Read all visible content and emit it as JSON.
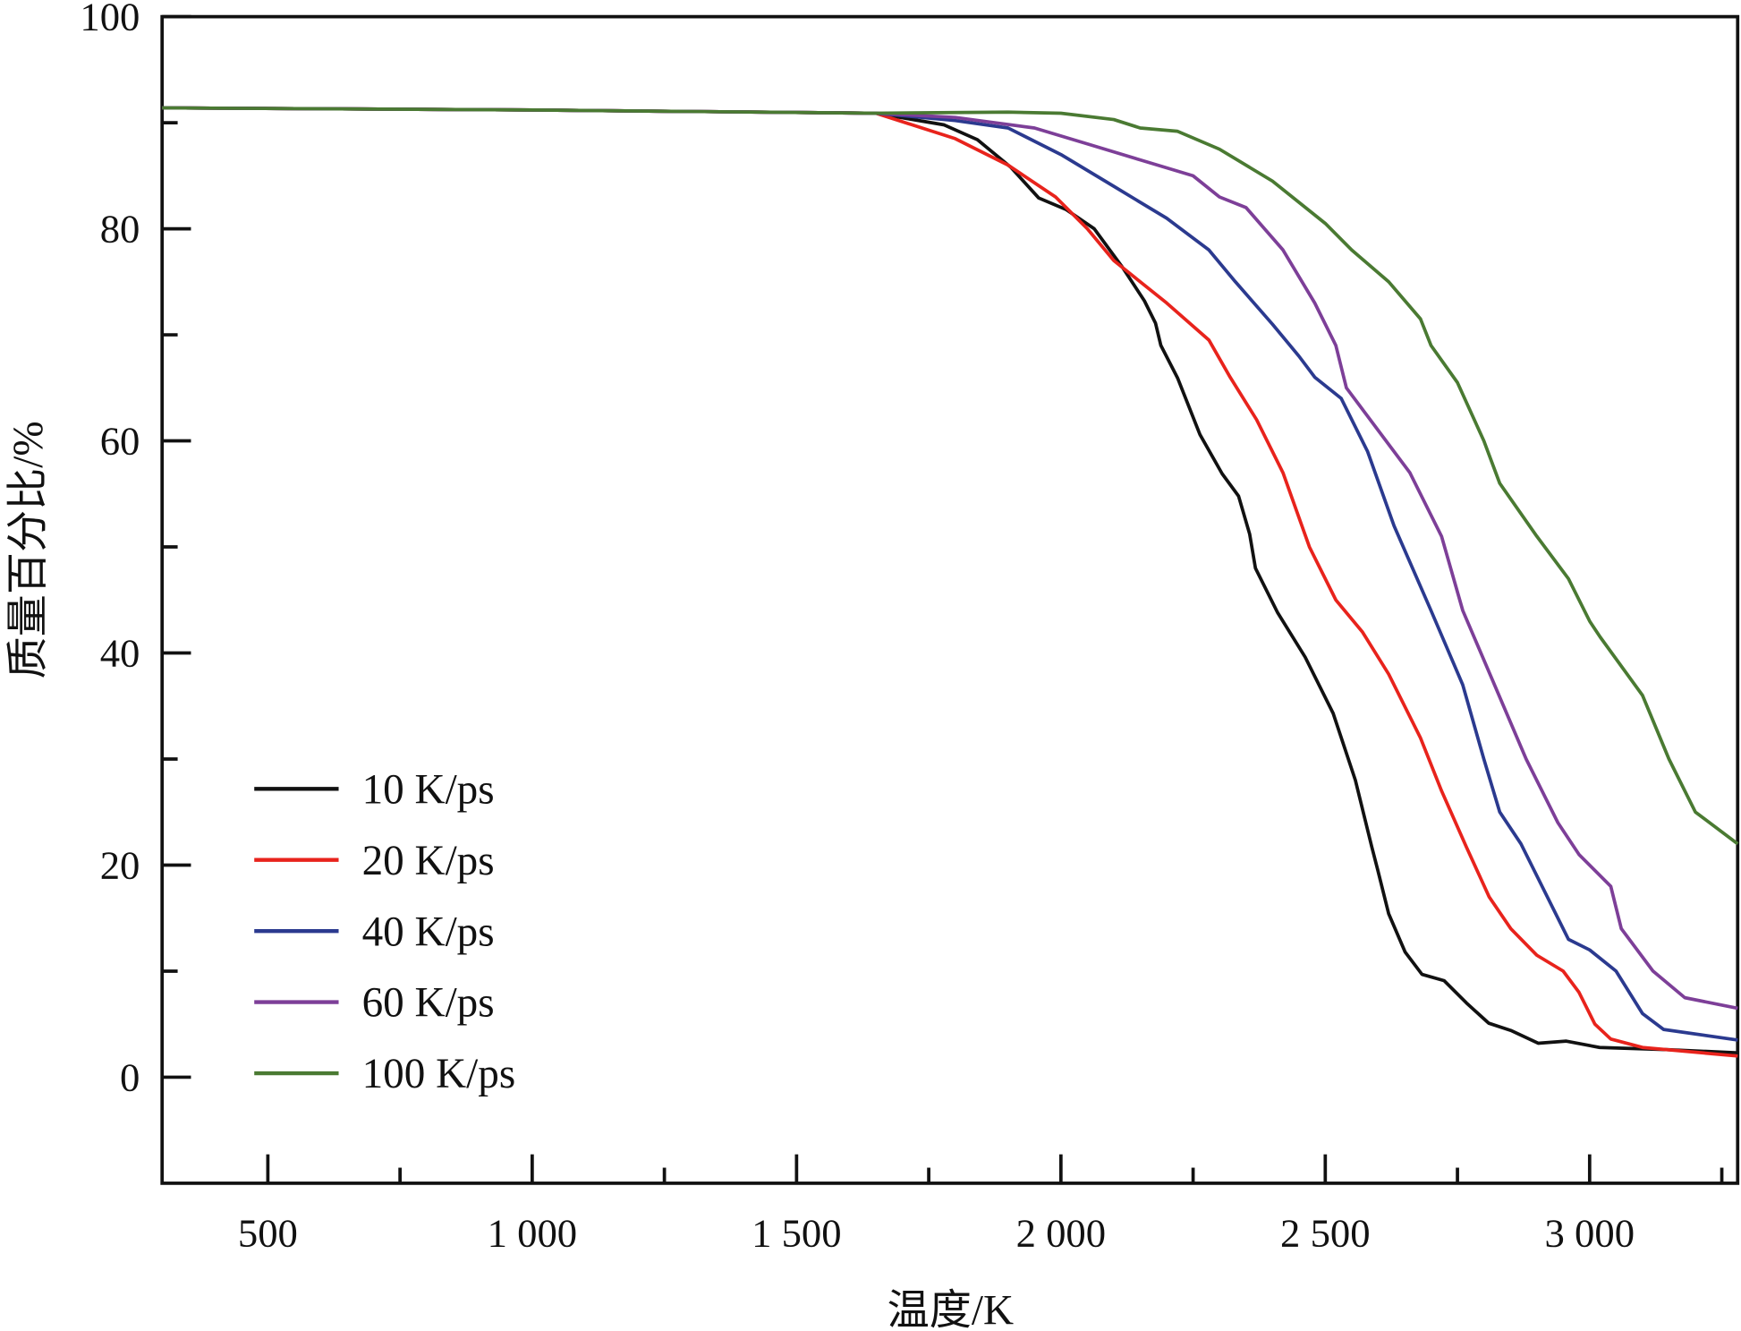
{
  "chart_data": {
    "type": "line",
    "title": "",
    "xlabel": "温度/K",
    "ylabel": "质量百分比/%",
    "xlim": [
      300,
      3280
    ],
    "ylim": [
      -10,
      100
    ],
    "xticks": [
      500,
      1000,
      1500,
      2000,
      2500,
      3000
    ],
    "xtick_labels": [
      "500",
      "1 000",
      "1 500",
      "2 000",
      "2 500",
      "3 000"
    ],
    "xminor": [
      750,
      1250,
      1750,
      2250,
      2750,
      3250
    ],
    "yticks": [
      0,
      20,
      40,
      60,
      80,
      100
    ],
    "ytick_labels": [
      "0",
      "20",
      "40",
      "60",
      "80",
      "100"
    ],
    "yminor": [
      10,
      30,
      50,
      70,
      90
    ],
    "grid": false,
    "legend_position": "bottom-left",
    "series": [
      {
        "name": "10 K/ps",
        "color": "#111111",
        "x": [
          300,
          1000,
          1650,
          1779,
          1842,
          1905,
          1958,
          2010,
          2063,
          2116,
          2158,
          2179,
          2189,
          2221,
          2263,
          2305,
          2336,
          2357,
          2368,
          2410,
          2462,
          2515,
          2557,
          2588,
          2599,
          2620,
          2651,
          2683,
          2725,
          2767,
          2809,
          2851,
          2903,
          2956,
          3019,
          3145,
          3280
        ],
        "y": [
          91.4,
          91.2,
          90.9,
          89.8,
          88.4,
          85.8,
          82.9,
          81.8,
          80.0,
          76.4,
          73.2,
          71.1,
          69.0,
          65.9,
          60.6,
          56.9,
          54.8,
          51.2,
          48.0,
          43.8,
          39.6,
          34.3,
          28.0,
          21.7,
          19.6,
          15.4,
          11.8,
          9.7,
          9.1,
          7.0,
          5.1,
          4.4,
          3.2,
          3.4,
          2.8,
          2.6,
          2.3
        ]
      },
      {
        "name": "20 K/ps",
        "color": "#e8231c",
        "x": [
          300,
          1000,
          1650,
          1800,
          1900,
          1990,
          2050,
          2100,
          2200,
          2280,
          2320,
          2370,
          2420,
          2470,
          2520,
          2570,
          2620,
          2680,
          2720,
          2767,
          2810,
          2851,
          2900,
          2950,
          2980,
          3010,
          3040,
          3100,
          3280
        ],
        "y": [
          91.4,
          91.2,
          90.9,
          88.5,
          86,
          83,
          80,
          77,
          73,
          69.5,
          66,
          62,
          57,
          50,
          45,
          42,
          38,
          32,
          27,
          21.7,
          17,
          14,
          11.5,
          10,
          8,
          5,
          3.6,
          2.8,
          2.0
        ]
      },
      {
        "name": "40 K/ps",
        "color": "#2b3a8f",
        "x": [
          300,
          1000,
          1650,
          1800,
          1900,
          2000,
          2100,
          2200,
          2280,
          2330,
          2400,
          2450,
          2480,
          2530,
          2580,
          2630,
          2700,
          2760,
          2800,
          2830,
          2870,
          2920,
          2960,
          3000,
          3050,
          3100,
          3140,
          3280
        ],
        "y": [
          91.4,
          91.2,
          90.9,
          90.2,
          89.5,
          87,
          84,
          81,
          78,
          75,
          71,
          68,
          66,
          64,
          59,
          52,
          44,
          37,
          30,
          25,
          22,
          17,
          13,
          12,
          10,
          6,
          4.5,
          3.5
        ]
      },
      {
        "name": "60 K/ps",
        "color": "#7d3f98",
        "x": [
          300,
          1000,
          1650,
          1800,
          1950,
          2050,
          2150,
          2250,
          2300,
          2350,
          2420,
          2480,
          2520,
          2540,
          2600,
          2660,
          2720,
          2760,
          2820,
          2880,
          2940,
          2980,
          3040,
          3060,
          3120,
          3180,
          3280
        ],
        "y": [
          91.4,
          91.2,
          90.9,
          90.5,
          89.5,
          88,
          86.5,
          85,
          83,
          82,
          78,
          73,
          69,
          65,
          61,
          57,
          51,
          44,
          37,
          30,
          24,
          21,
          18,
          14,
          10,
          7.5,
          6.5
        ]
      },
      {
        "name": "100 K/ps",
        "color": "#4a7a32",
        "x": [
          300,
          1000,
          1650,
          1900,
          2000,
          2100,
          2150,
          2220,
          2300,
          2400,
          2500,
          2550,
          2620,
          2680,
          2700,
          2750,
          2800,
          2830,
          2900,
          2960,
          3000,
          3020,
          3100,
          3150,
          3200,
          3280
        ],
        "y": [
          91.4,
          91.2,
          90.9,
          91.0,
          90.9,
          90.3,
          89.5,
          89.2,
          87.5,
          84.5,
          80.5,
          78,
          75,
          71.5,
          69,
          65.5,
          60,
          56,
          51,
          47,
          43,
          41.5,
          36,
          30,
          25,
          22
        ]
      }
    ]
  }
}
